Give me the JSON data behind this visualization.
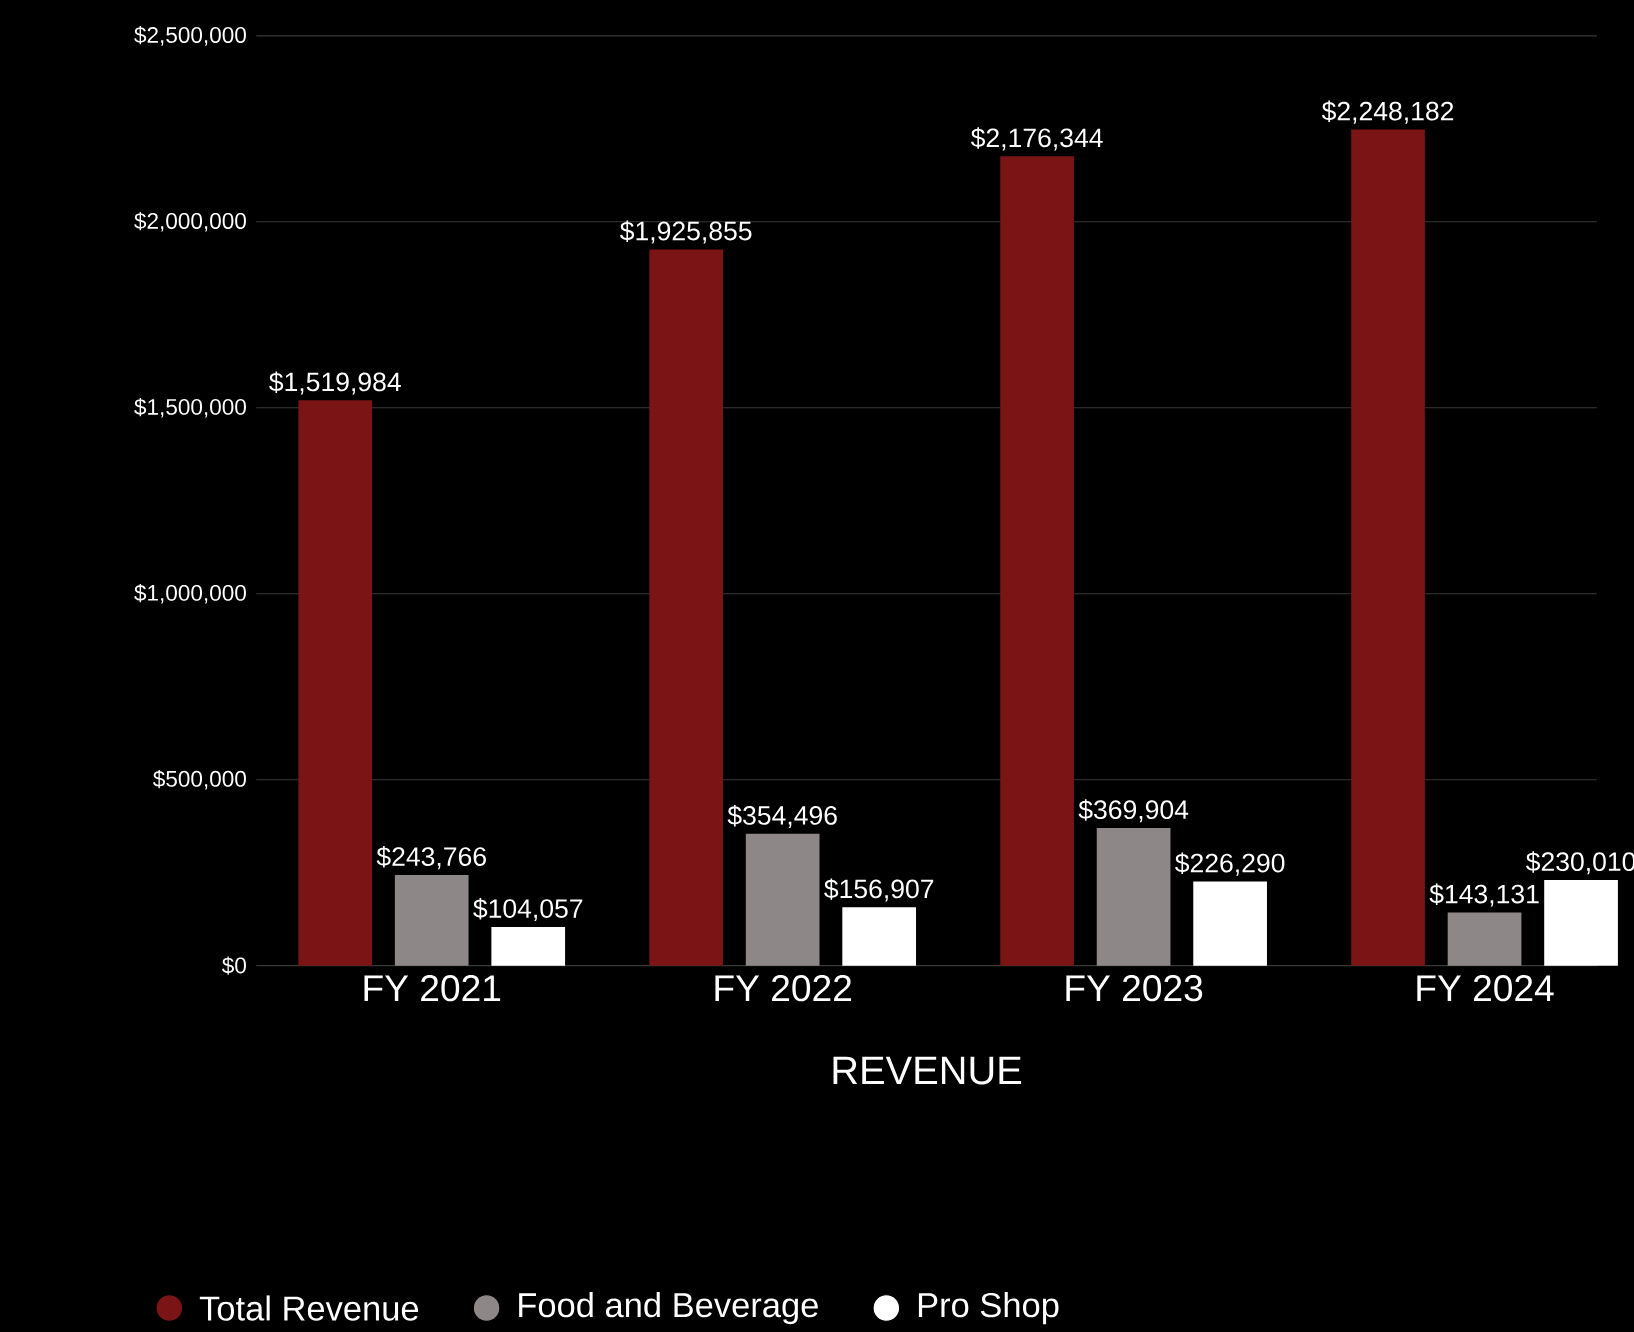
{
  "chart_data": {
    "type": "bar",
    "xlabel": "REVENUE",
    "categories": [
      "FY 2021",
      "FY 2022",
      "FY 2023",
      "FY 2024"
    ],
    "series": [
      {
        "name": "Total Revenue",
        "color": "#7b1414",
        "values": [
          1519984,
          1925855,
          2176344,
          2248182
        ],
        "value_labels": [
          "$1,519,984",
          "$1,925,855",
          "$2,176,344",
          "$2,248,182"
        ]
      },
      {
        "name": "Food and Beverage",
        "color": "#8e8787",
        "values": [
          243766,
          354496,
          369904,
          143131
        ],
        "value_labels": [
          "$243,766",
          "$354,496",
          "$369,904",
          "$143,131"
        ]
      },
      {
        "name": "Pro Shop",
        "color": "#ffffff",
        "values": [
          104057,
          156907,
          226290,
          230010
        ],
        "value_labels": [
          "$104,057",
          "$156,907",
          "$226,290",
          "$230,010"
        ]
      }
    ],
    "ylim": [
      0,
      2500000
    ],
    "yticks": [
      {
        "value": 0,
        "label": "$0"
      },
      {
        "value": 500000,
        "label": "$500,000"
      },
      {
        "value": 1000000,
        "label": "$1,000,000"
      },
      {
        "value": 1500000,
        "label": "$1,500,000"
      },
      {
        "value": 2000000,
        "label": "$2,000,000"
      },
      {
        "value": 2500000,
        "label": "$2,500,000"
      }
    ],
    "grid": "y",
    "legend": "bottom",
    "marker": "circle"
  }
}
